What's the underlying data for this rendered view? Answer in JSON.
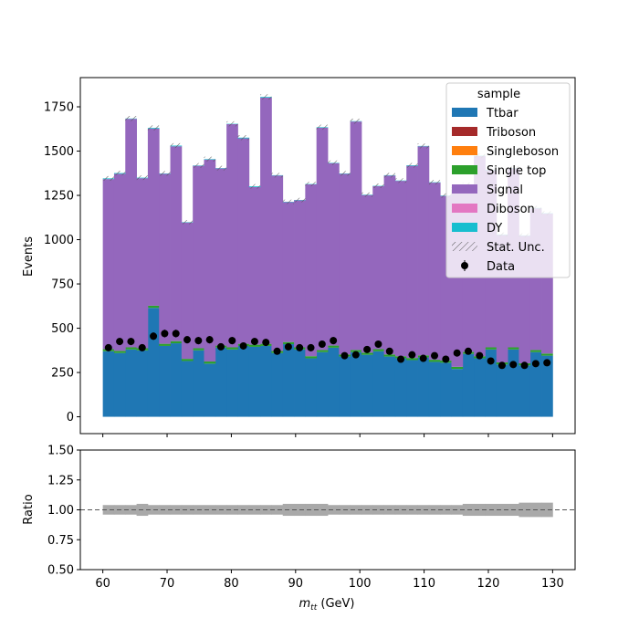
{
  "chart_data": [
    {
      "type": "bar",
      "stacked": true,
      "x_bin_edges": [
        60,
        61.75,
        63.5,
        65.25,
        67,
        68.75,
        70.5,
        72.25,
        74,
        75.75,
        77.5,
        79.25,
        81,
        82.75,
        84.5,
        86.25,
        88,
        89.75,
        91.5,
        93.25,
        95,
        96.75,
        98.5,
        100.25,
        102,
        103.75,
        105.5,
        107.25,
        109,
        110.75,
        112.5,
        114.25,
        116,
        117.75,
        119.5,
        121.25,
        123,
        124.75,
        126.5,
        128.25,
        130
      ],
      "series": [
        {
          "name": "Ttbar",
          "color": "#1f77b4",
          "values": [
            370,
            360,
            380,
            375,
            615,
            400,
            415,
            315,
            375,
            300,
            390,
            380,
            400,
            395,
            400,
            360,
            410,
            380,
            330,
            365,
            390,
            340,
            365,
            350,
            370,
            340,
            330,
            320,
            335,
            310,
            305,
            270,
            355,
            330,
            380,
            295,
            380,
            290,
            365,
            345
          ]
        },
        {
          "name": "Triboson",
          "color": "#a52a2a",
          "values": [
            0,
            0,
            0,
            0,
            0,
            0,
            0,
            0,
            0,
            0,
            0,
            0,
            0,
            0,
            0,
            0,
            0,
            0,
            0,
            0,
            0,
            0,
            0,
            0,
            0,
            0,
            0,
            0,
            0,
            0,
            0,
            0,
            0,
            0,
            0,
            0,
            0,
            0,
            0,
            0
          ]
        },
        {
          "name": "Singleboson",
          "color": "#ff7f0e",
          "values": [
            0,
            0,
            0,
            0,
            0,
            0,
            0,
            0,
            0,
            0,
            0,
            0,
            0,
            0,
            0,
            0,
            0,
            0,
            0,
            0,
            0,
            0,
            0,
            0,
            0,
            0,
            0,
            0,
            0,
            0,
            0,
            0,
            0,
            0,
            0,
            0,
            0,
            0,
            0,
            0
          ]
        },
        {
          "name": "Single top",
          "color": "#2ca02c",
          "values": [
            12,
            12,
            12,
            12,
            12,
            12,
            12,
            12,
            12,
            12,
            12,
            12,
            12,
            12,
            12,
            12,
            12,
            12,
            12,
            12,
            12,
            12,
            12,
            12,
            12,
            12,
            12,
            12,
            12,
            12,
            12,
            12,
            12,
            12,
            12,
            12,
            12,
            12,
            12,
            12
          ]
        },
        {
          "name": "Signal",
          "color": "#9467bd",
          "values": [
            960,
            1000,
            1290,
            960,
            1000,
            960,
            1100,
            770,
            1030,
            1140,
            1000,
            1260,
            1160,
            890,
            1390,
            990,
            790,
            830,
            970,
            1255,
            1030,
            1020,
            1290,
            890,
            920,
            1010,
            990,
            1085,
            1180,
            1000,
            930,
            1000,
            940,
            1130,
            1000,
            720,
            1010,
            720,
            800,
            790
          ]
        },
        {
          "name": "Diboson",
          "color": "#e377c2",
          "values": [
            0,
            0,
            0,
            0,
            0,
            0,
            0,
            0,
            0,
            0,
            0,
            0,
            0,
            0,
            0,
            0,
            0,
            0,
            0,
            0,
            0,
            0,
            0,
            0,
            0,
            0,
            0,
            0,
            0,
            0,
            0,
            0,
            0,
            0,
            0,
            0,
            0,
            0,
            0,
            0
          ]
        },
        {
          "name": "DY",
          "color": "#17becf",
          "values": [
            4,
            4,
            2,
            3,
            4,
            2,
            4,
            2,
            2,
            3,
            2,
            2,
            4,
            4,
            4,
            2,
            2,
            2,
            2,
            3,
            2,
            2,
            2,
            2,
            2,
            2,
            2,
            3,
            2,
            2,
            2,
            2,
            2,
            2,
            2,
            2,
            2,
            2,
            2,
            2
          ]
        }
      ],
      "data_points": {
        "name": "Data",
        "x": [
          60.875,
          62.625,
          64.375,
          66.125,
          67.875,
          69.625,
          71.375,
          73.125,
          74.875,
          76.625,
          78.375,
          80.125,
          81.875,
          83.625,
          85.375,
          87.125,
          88.875,
          90.625,
          92.375,
          94.125,
          95.875,
          97.625,
          99.375,
          101.125,
          102.875,
          104.625,
          106.375,
          108.125,
          109.875,
          111.625,
          113.375,
          115.125,
          116.875,
          118.625,
          120.375,
          122.125,
          123.875,
          125.625,
          127.375,
          129.125
        ],
        "y": [
          390,
          425,
          425,
          390,
          455,
          470,
          470,
          435,
          430,
          435,
          395,
          430,
          400,
          425,
          420,
          370,
          395,
          390,
          390,
          410,
          430,
          345,
          350,
          380,
          410,
          370,
          325,
          350,
          330,
          345,
          325,
          360,
          370,
          345,
          315,
          290,
          295,
          290,
          300,
          305
        ]
      },
      "xlim": [
        56.5,
        133.5
      ],
      "ylim": [
        -95,
        1915
      ],
      "xticks": [
        60,
        70,
        80,
        90,
        100,
        110,
        120,
        130
      ],
      "yticks": [
        0,
        250,
        500,
        750,
        1000,
        1250,
        1500,
        1750
      ],
      "ylabel": "Events",
      "legend": {
        "title": "sample",
        "placement": "top-right",
        "entries": [
          "Ttbar",
          "Triboson",
          "Singleboson",
          "Single top",
          "Signal",
          "Diboson",
          "DY",
          "Stat. Unc.",
          "Data"
        ]
      },
      "stat_unc_label": "Stat. Unc.",
      "grid": false
    },
    {
      "type": "bar",
      "name": "ratio",
      "ratio_reference": 1.0,
      "ratio_unc_low": [
        0.96,
        0.96,
        0.96,
        0.95,
        0.96,
        0.96,
        0.96,
        0.96,
        0.96,
        0.96,
        0.96,
        0.96,
        0.96,
        0.96,
        0.96,
        0.96,
        0.95,
        0.95,
        0.95,
        0.95,
        0.96,
        0.96,
        0.96,
        0.96,
        0.96,
        0.96,
        0.96,
        0.96,
        0.96,
        0.96,
        0.96,
        0.96,
        0.95,
        0.95,
        0.95,
        0.95,
        0.95,
        0.94,
        0.94,
        0.94
      ],
      "ratio_unc_high": [
        1.04,
        1.04,
        1.04,
        1.05,
        1.04,
        1.04,
        1.04,
        1.04,
        1.04,
        1.04,
        1.04,
        1.04,
        1.04,
        1.04,
        1.04,
        1.04,
        1.05,
        1.05,
        1.05,
        1.05,
        1.04,
        1.04,
        1.04,
        1.04,
        1.04,
        1.04,
        1.04,
        1.04,
        1.04,
        1.04,
        1.04,
        1.04,
        1.05,
        1.05,
        1.05,
        1.05,
        1.05,
        1.06,
        1.06,
        1.06
      ],
      "unc_color": "#a9a9a9",
      "ylim": [
        0.5,
        1.5
      ],
      "yticks": [
        "0.50",
        "0.75",
        "1.00",
        "1.25",
        "1.50"
      ],
      "ylabel": "Ratio",
      "xlabel": "m_tt (GeV)",
      "xlabel_main": "m",
      "xlabel_sub": "tt",
      "xlabel_unit": " (GeV)"
    }
  ]
}
